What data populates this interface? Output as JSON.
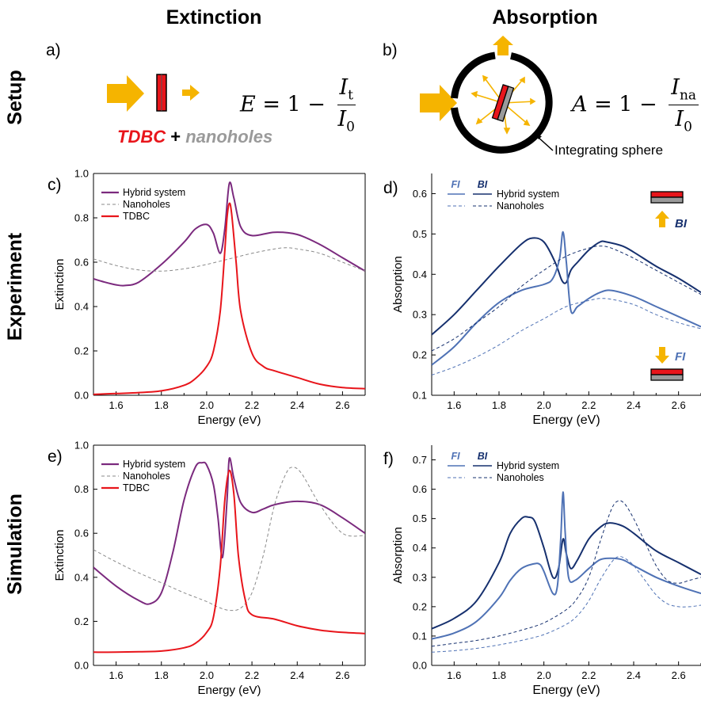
{
  "header": {
    "col_extinction": "Extinction",
    "col_absorption": "Absorption",
    "row_setup": "Setup",
    "row_experiment": "Experiment",
    "row_simulation": "Simulation"
  },
  "panel_labels": {
    "a": "a)",
    "b": "b)",
    "c": "c)",
    "d": "d)",
    "e": "e)",
    "f": "f)"
  },
  "setup": {
    "eq_extinction": {
      "lhs": "E",
      "rhs": "= 1 −",
      "num": "I",
      "num_sub": "t",
      "den": "I",
      "den_sub": "0"
    },
    "eq_absorption": {
      "lhs": "A",
      "rhs": "= 1 −",
      "num": "I",
      "num_sub": "na",
      "den": "I",
      "den_sub": "0"
    },
    "sample_tdbc": "TDBC",
    "sample_plus": "+",
    "sample_nanoholes": "nanoholes",
    "sphere_label": "Integrating sphere",
    "colors": {
      "arrow": "#f5b400",
      "tdbc": "#e8151b",
      "nanoholes": "#9a9a9a"
    }
  },
  "labels": {
    "BI": "BI",
    "FI": "FI"
  },
  "chart_data": [
    {
      "id": "c",
      "type": "line",
      "xlabel": "Energy (eV)",
      "ylabel": "Extinction",
      "xlim": [
        1.5,
        2.7
      ],
      "ylim": [
        0,
        1
      ],
      "xticks": [
        "1.6",
        "1.8",
        "2.0",
        "2.2",
        "2.4",
        "2.6"
      ],
      "yticks": [
        "0.0",
        "0.2",
        "0.4",
        "0.6",
        "0.8",
        "1.0"
      ],
      "legend_placement": "top-left",
      "series": [
        {
          "name": "Hybrid system",
          "color": "#7b2a7e",
          "style": "solid",
          "x": [
            1.5,
            1.55,
            1.6,
            1.64,
            1.7,
            1.8,
            1.9,
            1.95,
            2.0,
            2.03,
            2.06,
            2.08,
            2.1,
            2.12,
            2.15,
            2.2,
            2.3,
            2.4,
            2.5,
            2.6,
            2.7
          ],
          "y": [
            0.525,
            0.51,
            0.498,
            0.495,
            0.51,
            0.59,
            0.69,
            0.75,
            0.77,
            0.73,
            0.64,
            0.75,
            0.955,
            0.89,
            0.76,
            0.72,
            0.735,
            0.725,
            0.68,
            0.62,
            0.56
          ]
        },
        {
          "name": "Nanoholes",
          "color": "#8a8a8a",
          "style": "dashed",
          "x": [
            1.5,
            1.6,
            1.7,
            1.8,
            1.9,
            2.0,
            2.1,
            2.2,
            2.3,
            2.35,
            2.4,
            2.5,
            2.6,
            2.7
          ],
          "y": [
            0.615,
            0.585,
            0.565,
            0.56,
            0.57,
            0.59,
            0.615,
            0.64,
            0.66,
            0.665,
            0.66,
            0.64,
            0.6,
            0.56
          ]
        },
        {
          "name": "TDBC",
          "color": "#e8151b",
          "style": "solid",
          "x": [
            1.5,
            1.6,
            1.7,
            1.8,
            1.9,
            1.95,
            2.0,
            2.03,
            2.06,
            2.08,
            2.09,
            2.1,
            2.11,
            2.13,
            2.15,
            2.2,
            2.25,
            2.3,
            2.4,
            2.5,
            2.6,
            2.7
          ],
          "y": [
            0.004,
            0.008,
            0.012,
            0.02,
            0.045,
            0.075,
            0.13,
            0.2,
            0.38,
            0.65,
            0.8,
            0.865,
            0.82,
            0.6,
            0.38,
            0.19,
            0.13,
            0.11,
            0.08,
            0.05,
            0.035,
            0.03
          ]
        }
      ]
    },
    {
      "id": "d",
      "type": "line",
      "xlabel": "Energy (eV)",
      "ylabel": "Absorption",
      "xlim": [
        1.5,
        2.7
      ],
      "ylim": [
        0.1,
        0.65
      ],
      "xticks": [
        "1.6",
        "1.8",
        "2.0",
        "2.2",
        "2.4",
        "2.6"
      ],
      "yticks": [
        "0.1",
        "0.2",
        "0.3",
        "0.4",
        "0.5",
        "0.6"
      ],
      "legend_placement": "top-left",
      "legend_headers": [
        "FI",
        "BI"
      ],
      "series": [
        {
          "name": "Hybrid system",
          "sub": "BI",
          "color": "#16306e",
          "style": "solid",
          "x": [
            1.5,
            1.6,
            1.7,
            1.8,
            1.9,
            1.95,
            2.0,
            2.05,
            2.08,
            2.1,
            2.12,
            2.15,
            2.2,
            2.25,
            2.28,
            2.35,
            2.4,
            2.5,
            2.6,
            2.7
          ],
          "y": [
            0.25,
            0.3,
            0.36,
            0.42,
            0.475,
            0.49,
            0.48,
            0.43,
            0.385,
            0.38,
            0.41,
            0.43,
            0.46,
            0.48,
            0.48,
            0.47,
            0.455,
            0.42,
            0.39,
            0.355
          ]
        },
        {
          "name": "Hybrid system",
          "sub": "FI",
          "color": "#4f72b5",
          "style": "solid",
          "x": [
            1.5,
            1.6,
            1.7,
            1.8,
            1.9,
            2.0,
            2.04,
            2.07,
            2.085,
            2.1,
            2.12,
            2.15,
            2.2,
            2.25,
            2.3,
            2.4,
            2.5,
            2.6,
            2.7
          ],
          "y": [
            0.175,
            0.22,
            0.28,
            0.33,
            0.36,
            0.375,
            0.39,
            0.44,
            0.505,
            0.43,
            0.31,
            0.32,
            0.34,
            0.355,
            0.36,
            0.345,
            0.32,
            0.295,
            0.27
          ]
        },
        {
          "name": "Nanoholes",
          "sub": "BI",
          "color": "#16306e",
          "style": "dashed",
          "x": [
            1.5,
            1.6,
            1.7,
            1.8,
            1.9,
            2.0,
            2.1,
            2.2,
            2.25,
            2.3,
            2.4,
            2.5,
            2.6,
            2.7
          ],
          "y": [
            0.21,
            0.24,
            0.28,
            0.32,
            0.37,
            0.41,
            0.445,
            0.465,
            0.47,
            0.465,
            0.44,
            0.41,
            0.38,
            0.35
          ]
        },
        {
          "name": "Nanoholes",
          "sub": "FI",
          "color": "#4f72b5",
          "style": "dashed",
          "x": [
            1.5,
            1.6,
            1.7,
            1.8,
            1.9,
            2.0,
            2.1,
            2.2,
            2.25,
            2.3,
            2.4,
            2.5,
            2.6,
            2.7
          ],
          "y": [
            0.15,
            0.17,
            0.195,
            0.225,
            0.26,
            0.29,
            0.32,
            0.335,
            0.34,
            0.338,
            0.325,
            0.3,
            0.28,
            0.265
          ]
        }
      ]
    },
    {
      "id": "e",
      "type": "line",
      "xlabel": "Energy (eV)",
      "ylabel": "Extinction",
      "xlim": [
        1.5,
        2.7
      ],
      "ylim": [
        0,
        1
      ],
      "xticks": [
        "1.6",
        "1.8",
        "2.0",
        "2.2",
        "2.4",
        "2.6"
      ],
      "yticks": [
        "0.0",
        "0.2",
        "0.4",
        "0.6",
        "0.8",
        "1.0"
      ],
      "legend_placement": "top-left",
      "series": [
        {
          "name": "Hybrid system",
          "color": "#7b2a7e",
          "style": "solid",
          "x": [
            1.5,
            1.6,
            1.7,
            1.75,
            1.8,
            1.85,
            1.9,
            1.95,
            1.98,
            2.0,
            2.03,
            2.05,
            2.07,
            2.09,
            2.1,
            2.12,
            2.15,
            2.2,
            2.25,
            2.3,
            2.4,
            2.5,
            2.6,
            2.7
          ],
          "y": [
            0.445,
            0.36,
            0.295,
            0.28,
            0.33,
            0.51,
            0.75,
            0.9,
            0.92,
            0.91,
            0.82,
            0.67,
            0.49,
            0.75,
            0.94,
            0.85,
            0.74,
            0.695,
            0.71,
            0.73,
            0.745,
            0.73,
            0.67,
            0.6
          ]
        },
        {
          "name": "Nanoholes",
          "color": "#8a8a8a",
          "style": "dashed",
          "x": [
            1.5,
            1.6,
            1.7,
            1.8,
            1.9,
            2.0,
            2.05,
            2.1,
            2.15,
            2.2,
            2.25,
            2.3,
            2.35,
            2.38,
            2.42,
            2.5,
            2.6,
            2.7
          ],
          "y": [
            0.525,
            0.47,
            0.42,
            0.375,
            0.33,
            0.29,
            0.265,
            0.25,
            0.26,
            0.33,
            0.5,
            0.73,
            0.87,
            0.9,
            0.87,
            0.73,
            0.6,
            0.59
          ]
        },
        {
          "name": "TDBC",
          "color": "#e8151b",
          "style": "solid",
          "x": [
            1.5,
            1.6,
            1.7,
            1.8,
            1.9,
            1.95,
            2.0,
            2.03,
            2.06,
            2.08,
            2.1,
            2.12,
            2.14,
            2.17,
            2.2,
            2.3,
            2.4,
            2.5,
            2.6,
            2.7
          ],
          "y": [
            0.06,
            0.06,
            0.062,
            0.065,
            0.08,
            0.1,
            0.15,
            0.22,
            0.45,
            0.75,
            0.885,
            0.78,
            0.5,
            0.3,
            0.23,
            0.21,
            0.18,
            0.16,
            0.15,
            0.145
          ]
        }
      ]
    },
    {
      "id": "f",
      "type": "line",
      "xlabel": "Energy (eV)",
      "ylabel": "Absorption",
      "xlim": [
        1.5,
        2.7
      ],
      "ylim": [
        0.0,
        0.75
      ],
      "xticks": [
        "1.6",
        "1.8",
        "2.0",
        "2.2",
        "2.4",
        "2.6"
      ],
      "yticks": [
        "0.0",
        "0.1",
        "0.2",
        "0.3",
        "0.4",
        "0.5",
        "0.6",
        "0.7"
      ],
      "legend_placement": "top-left",
      "legend_headers": [
        "FI",
        "BI"
      ],
      "series": [
        {
          "name": "Hybrid system",
          "sub": "BI",
          "color": "#16306e",
          "style": "solid",
          "x": [
            1.5,
            1.6,
            1.7,
            1.8,
            1.85,
            1.9,
            1.93,
            1.96,
            2.0,
            2.04,
            2.065,
            2.085,
            2.1,
            2.12,
            2.15,
            2.2,
            2.25,
            2.29,
            2.35,
            2.4,
            2.5,
            2.6,
            2.7
          ],
          "y": [
            0.125,
            0.16,
            0.22,
            0.35,
            0.45,
            0.5,
            0.505,
            0.49,
            0.4,
            0.3,
            0.33,
            0.43,
            0.38,
            0.33,
            0.36,
            0.43,
            0.47,
            0.485,
            0.475,
            0.45,
            0.39,
            0.35,
            0.31
          ]
        },
        {
          "name": "Hybrid system",
          "sub": "FI",
          "color": "#4f72b5",
          "style": "solid",
          "x": [
            1.5,
            1.6,
            1.7,
            1.8,
            1.85,
            1.9,
            1.95,
            1.98,
            2.0,
            2.04,
            2.06,
            2.075,
            2.085,
            2.095,
            2.11,
            2.14,
            2.2,
            2.25,
            2.3,
            2.35,
            2.4,
            2.5,
            2.6,
            2.7
          ],
          "y": [
            0.09,
            0.11,
            0.15,
            0.23,
            0.29,
            0.33,
            0.345,
            0.345,
            0.32,
            0.245,
            0.27,
            0.43,
            0.59,
            0.45,
            0.3,
            0.29,
            0.33,
            0.36,
            0.365,
            0.36,
            0.34,
            0.3,
            0.27,
            0.245
          ]
        },
        {
          "name": "Nanoholes",
          "sub": "BI",
          "color": "#16306e",
          "style": "dashed",
          "x": [
            1.5,
            1.6,
            1.7,
            1.8,
            1.9,
            2.0,
            2.1,
            2.15,
            2.2,
            2.25,
            2.3,
            2.33,
            2.36,
            2.4,
            2.45,
            2.5,
            2.55,
            2.6,
            2.65,
            2.7
          ],
          "y": [
            0.065,
            0.075,
            0.085,
            0.1,
            0.12,
            0.145,
            0.19,
            0.23,
            0.3,
            0.42,
            0.53,
            0.56,
            0.55,
            0.5,
            0.42,
            0.34,
            0.29,
            0.28,
            0.29,
            0.3
          ]
        },
        {
          "name": "Nanoholes",
          "sub": "FI",
          "color": "#4f72b5",
          "style": "dashed",
          "x": [
            1.5,
            1.6,
            1.7,
            1.8,
            1.9,
            2.0,
            2.1,
            2.15,
            2.2,
            2.25,
            2.3,
            2.33,
            2.36,
            2.4,
            2.45,
            2.5,
            2.55,
            2.6,
            2.65,
            2.7
          ],
          "y": [
            0.045,
            0.05,
            0.058,
            0.07,
            0.085,
            0.105,
            0.14,
            0.17,
            0.22,
            0.29,
            0.35,
            0.37,
            0.365,
            0.34,
            0.29,
            0.24,
            0.21,
            0.2,
            0.2,
            0.205
          ]
        }
      ]
    }
  ]
}
